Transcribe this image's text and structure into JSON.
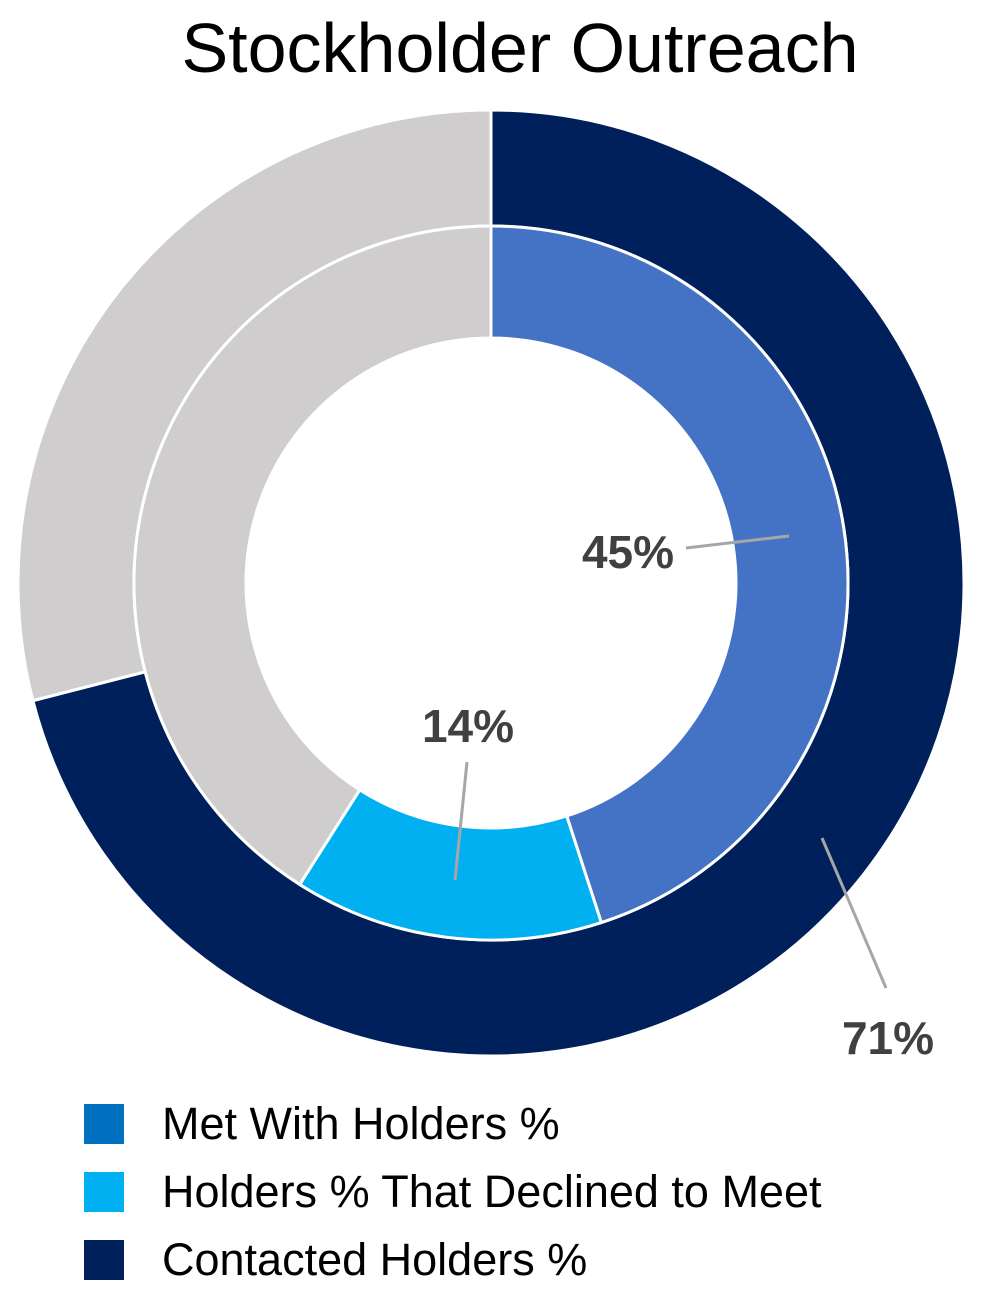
{
  "chart_data": {
    "type": "donut",
    "title": "Stockholder Outreach",
    "rings": [
      {
        "name": "Contacted Holders %",
        "value": 71,
        "label": "71%",
        "color": "#00205B",
        "remainder_color": "#CFCDCE"
      },
      {
        "name": "Met With Holders %",
        "value": 45,
        "label": "45%",
        "color": "#4472C4",
        "remainder_color": "#CFCDCE"
      },
      {
        "name": "Holders % That Declined to Meet",
        "value": 14,
        "label": "14%",
        "color": "#00B0F0",
        "remainder_color": "#CFCDCE"
      }
    ],
    "legend": {
      "position": "bottom-left",
      "items": [
        {
          "label": "Met With Holders %",
          "color": "#0070C0"
        },
        {
          "label": "Holders % That Declined to Meet",
          "color": "#00B0F0"
        },
        {
          "label": "Contacted Holders %",
          "color": "#00205B"
        }
      ]
    }
  }
}
